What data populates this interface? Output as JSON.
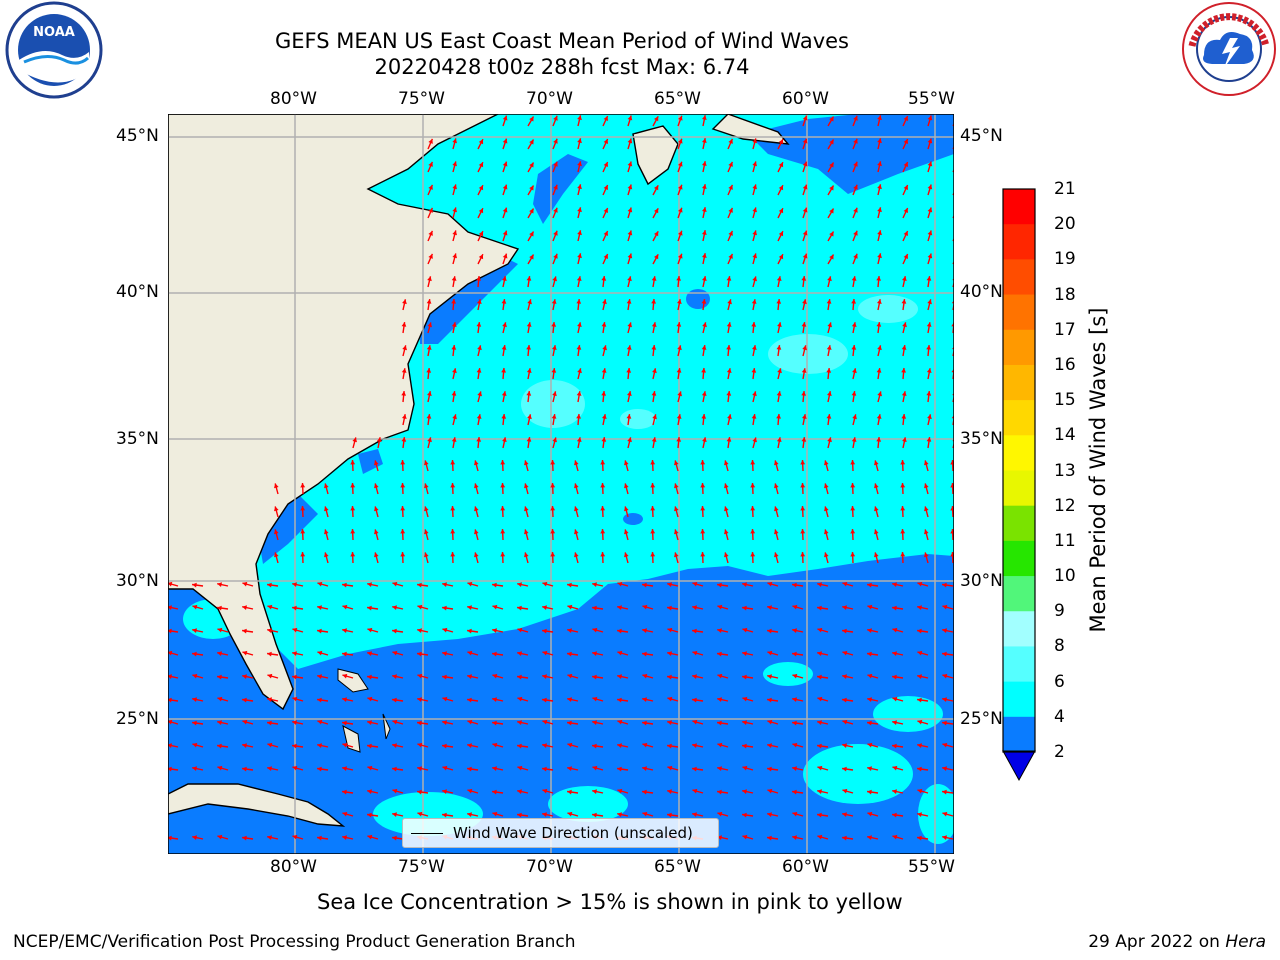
{
  "header": {
    "title": "GEFS MEAN US East Coast Mean Period of Wind Waves",
    "subtitle": "20220428 t00z 288h fcst   Max: 6.74"
  },
  "logos": {
    "left": {
      "icon": "noaa-logo",
      "text": "NOAA"
    },
    "right": {
      "icon": "nws-logo",
      "text": "NATIONAL WEATHER SERVICE"
    }
  },
  "map": {
    "lon_labels": [
      "80°W",
      "75°W",
      "70°W",
      "65°W",
      "60°W",
      "55°W"
    ],
    "lat_labels": [
      "45°N",
      "40°N",
      "35°N",
      "30°N",
      "25°N"
    ],
    "legend_label": "Wind Wave Direction (unscaled)",
    "colors": {
      "land": "#efedde",
      "ocean_2_4": "#0a7cff",
      "ocean_4_6": "#00ffff",
      "ocean_6_8": "#55ffff",
      "arrows": "#ff0000",
      "grid": "#b0b0b0"
    }
  },
  "colorbar": {
    "label": "Mean Period of Wind Waves [s]",
    "ticks": [
      "21",
      "20",
      "19",
      "18",
      "17",
      "16",
      "15",
      "14",
      "13",
      "12",
      "11",
      "10",
      "9",
      "8",
      "6",
      "4",
      "2"
    ],
    "colors": [
      "#ff0000",
      "#ff2600",
      "#ff4d00",
      "#ff7300",
      "#ff9900",
      "#ffb700",
      "#ffd800",
      "#fff700",
      "#e8f700",
      "#c8f500",
      "#7ae300",
      "#26e600",
      "#00f200",
      "#51f67a",
      "#a2ffff",
      "#55ffff",
      "#00ffff",
      "#0a7cff",
      "#0000e6"
    ]
  },
  "caption": "Sea Ice Concentration > 15% is shown in pink to yellow",
  "footer": {
    "left": "NCEP/EMC/Verification Post Processing Product Generation Branch",
    "right_prefix": "29 Apr 2022 on ",
    "right_host": "Hera"
  }
}
